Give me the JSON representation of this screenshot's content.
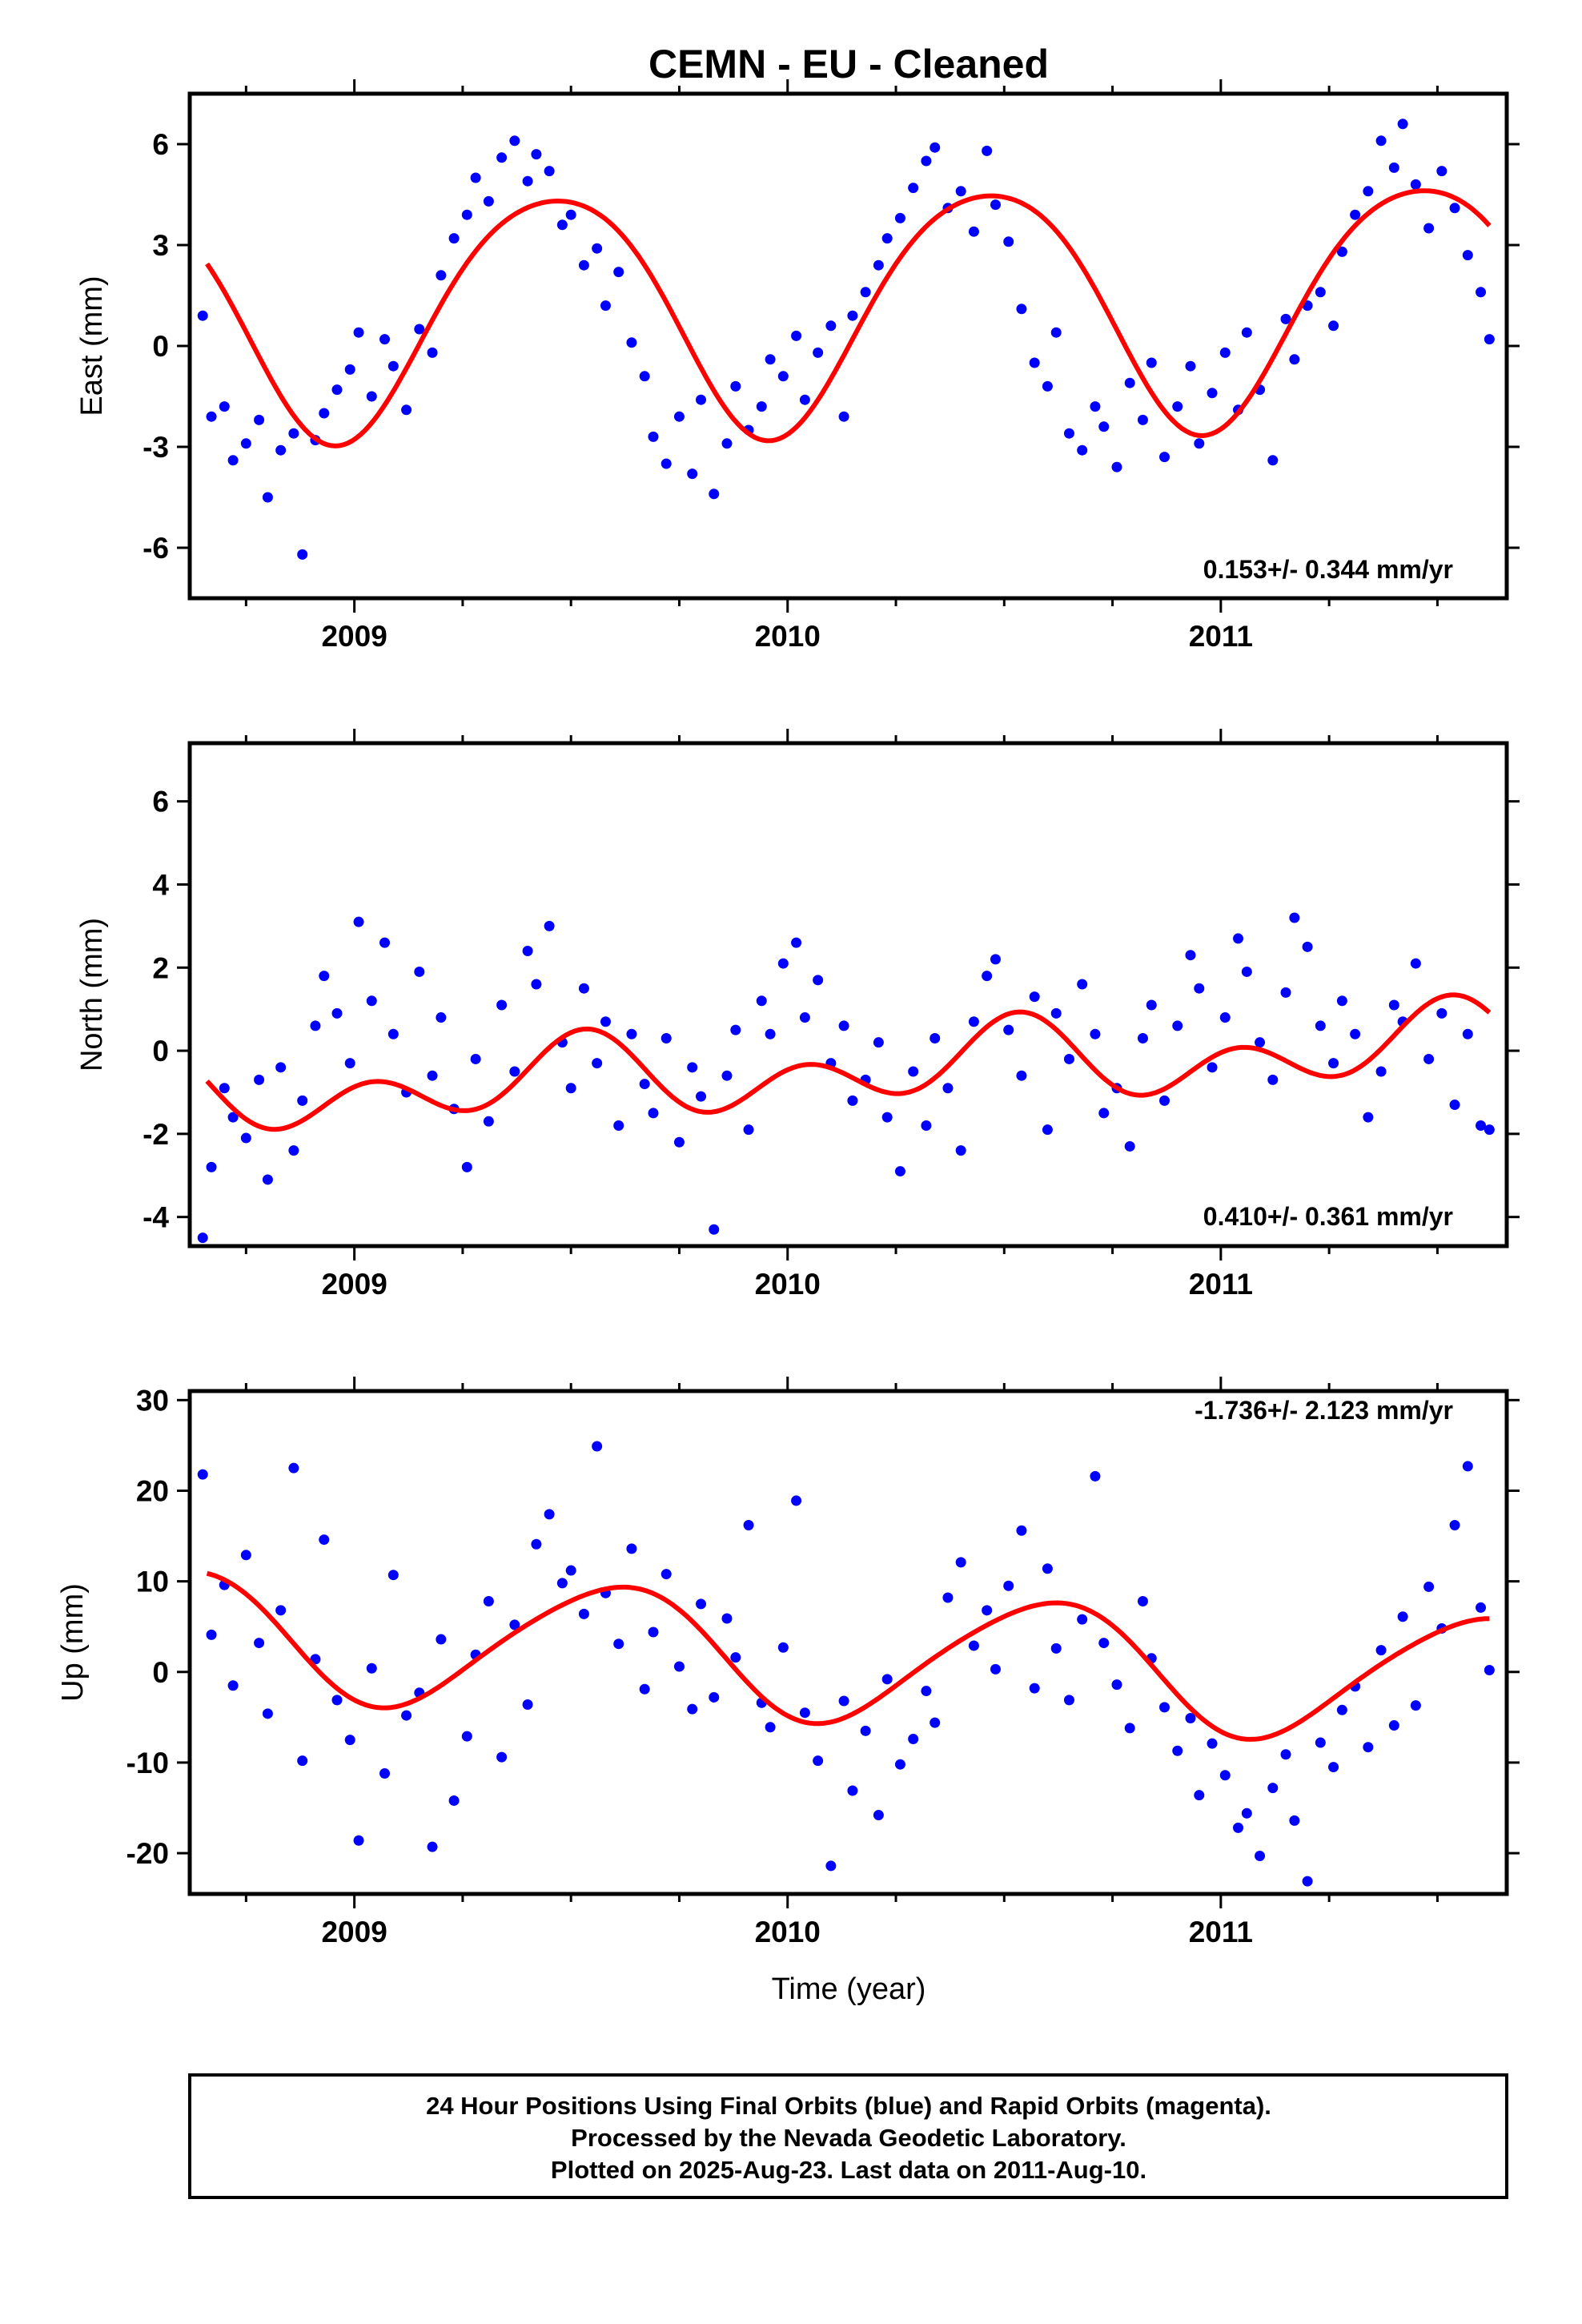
{
  "title": "CEMN  - EU - Cleaned",
  "xlabel": "Time (year)",
  "footer": [
    "24 Hour Positions Using Final Orbits (blue) and Rapid Orbits (magenta).",
    "Processed by the Nevada Geodetic Laboratory.",
    "Plotted on 2025-Aug-23. Last data on 2011-Aug-10."
  ],
  "colors": {
    "final_orbits": "#0000ff",
    "model_fit": "#ff0000",
    "frame": "#000000"
  },
  "chart_data": [
    {
      "type": "scatter",
      "ylabel": "East (mm)",
      "rate": "0.153+/- 0.344 mm/yr",
      "xlim": [
        2008.62,
        2011.66
      ],
      "ylim": [
        -7.5,
        7.5
      ],
      "xticks": [
        "2009",
        "2010",
        "2011"
      ],
      "yticks": [
        "6",
        "3",
        "0",
        "-3",
        "-6"
      ],
      "model": {
        "offset": 1.2,
        "slope": 0.153,
        "annual_amp": 3.6,
        "annual_peak": 2009.46,
        "semi_amp": 0.4,
        "semi_peak": 2009.2
      },
      "series": [
        {
          "x": [
            2008.65,
            2008.67,
            2008.7,
            2008.72,
            2008.75,
            2008.78,
            2008.8,
            2008.83,
            2008.86,
            2008.88,
            2008.91,
            2008.93,
            2008.96,
            2008.99,
            2009.01,
            2009.04,
            2009.07,
            2009.09,
            2009.12,
            2009.15,
            2009.18,
            2009.2,
            2009.23,
            2009.26,
            2009.28,
            2009.31,
            2009.34,
            2009.37,
            2009.4,
            2009.42,
            2009.45,
            2009.48,
            2009.5,
            2009.53,
            2009.56,
            2009.58,
            2009.61,
            2009.64,
            2009.67,
            2009.69,
            2009.72,
            2009.75,
            2009.78,
            2009.8,
            2009.83,
            2009.86,
            2009.88,
            2009.91,
            2009.94,
            2009.96,
            2009.99,
            2010.02,
            2010.04,
            2010.07,
            2010.1,
            2010.13,
            2010.15,
            2010.18,
            2010.21,
            2010.23,
            2010.26,
            2010.29,
            2010.32,
            2010.34,
            2010.37,
            2010.4,
            2010.43,
            2010.46,
            2010.48,
            2010.51,
            2010.54,
            2010.57,
            2010.6,
            2010.62,
            2010.65,
            2010.68,
            2010.71,
            2010.73,
            2010.76,
            2010.79,
            2010.82,
            2010.84,
            2010.87,
            2010.9,
            2010.93,
            2010.95,
            2010.98,
            2011.01,
            2011.04,
            2011.06,
            2011.09,
            2011.12,
            2011.15,
            2011.17,
            2011.2,
            2011.23,
            2011.26,
            2011.28,
            2011.31,
            2011.34,
            2011.37,
            2011.4,
            2011.42,
            2011.45,
            2011.48,
            2011.51,
            2011.54,
            2011.57,
            2011.6,
            2011.62
          ],
          "y": [
            0.9,
            -2.1,
            -1.8,
            -3.4,
            -2.9,
            -2.2,
            -4.5,
            -3.1,
            -2.6,
            -6.2,
            -2.8,
            -2.0,
            -1.3,
            -0.7,
            0.4,
            -1.5,
            0.2,
            -0.6,
            -1.9,
            0.5,
            -0.2,
            2.1,
            3.2,
            3.9,
            5.0,
            4.3,
            5.6,
            6.1,
            4.9,
            5.7,
            5.2,
            3.6,
            3.9,
            2.4,
            2.9,
            1.2,
            2.2,
            0.1,
            -0.9,
            -2.7,
            -3.5,
            -2.1,
            -3.8,
            -1.6,
            -4.4,
            -2.9,
            -1.2,
            -2.5,
            -1.8,
            -0.4,
            -0.9,
            0.3,
            -1.6,
            -0.2,
            0.6,
            -2.1,
            0.9,
            1.6,
            2.4,
            3.2,
            3.8,
            4.7,
            5.5,
            5.9,
            4.1,
            4.6,
            3.4,
            5.8,
            4.2,
            3.1,
            1.1,
            -0.5,
            -1.2,
            0.4,
            -2.6,
            -3.1,
            -1.8,
            -2.4,
            -3.6,
            -1.1,
            -2.2,
            -0.5,
            -3.3,
            -1.8,
            -0.6,
            -2.9,
            -1.4,
            -0.2,
            -1.9,
            0.4,
            -1.3,
            -3.4,
            0.8,
            -0.4,
            1.2,
            1.6,
            0.6,
            2.8,
            3.9,
            4.6,
            6.1,
            5.3,
            6.6,
            4.8,
            3.5,
            5.2,
            4.1,
            2.7,
            1.6,
            0.2
          ]
        }
      ]
    },
    {
      "type": "scatter",
      "ylabel": "North (mm)",
      "rate": "0.410+/- 0.361 mm/yr",
      "xlim": [
        2008.62,
        2011.66
      ],
      "ylim": [
        -4.7,
        7.4
      ],
      "xticks": [
        "2009",
        "2010",
        "2011"
      ],
      "yticks": [
        "6",
        "4",
        "2",
        "0",
        "-2",
        "-4"
      ],
      "model": {
        "offset": -0.48,
        "slope": 0.41,
        "annual_amp": 0.55,
        "annual_peak": 2009.5,
        "semi_amp": 0.7,
        "semi_peak": 2009.04
      },
      "series": [
        {
          "x": [
            2008.65,
            2008.67,
            2008.7,
            2008.72,
            2008.75,
            2008.78,
            2008.8,
            2008.83,
            2008.86,
            2008.88,
            2008.91,
            2008.93,
            2008.96,
            2008.99,
            2009.01,
            2009.04,
            2009.07,
            2009.09,
            2009.12,
            2009.15,
            2009.18,
            2009.2,
            2009.23,
            2009.26,
            2009.28,
            2009.31,
            2009.34,
            2009.37,
            2009.4,
            2009.42,
            2009.45,
            2009.48,
            2009.5,
            2009.53,
            2009.56,
            2009.58,
            2009.61,
            2009.64,
            2009.67,
            2009.69,
            2009.72,
            2009.75,
            2009.78,
            2009.8,
            2009.83,
            2009.86,
            2009.88,
            2009.91,
            2009.94,
            2009.96,
            2009.99,
            2010.02,
            2010.04,
            2010.07,
            2010.1,
            2010.13,
            2010.15,
            2010.18,
            2010.21,
            2010.23,
            2010.26,
            2010.29,
            2010.32,
            2010.34,
            2010.37,
            2010.4,
            2010.43,
            2010.46,
            2010.48,
            2010.51,
            2010.54,
            2010.57,
            2010.6,
            2010.62,
            2010.65,
            2010.68,
            2010.71,
            2010.73,
            2010.76,
            2010.79,
            2010.82,
            2010.84,
            2010.87,
            2010.9,
            2010.93,
            2010.95,
            2010.98,
            2011.01,
            2011.04,
            2011.06,
            2011.09,
            2011.12,
            2011.15,
            2011.17,
            2011.2,
            2011.23,
            2011.26,
            2011.28,
            2011.31,
            2011.34,
            2011.37,
            2011.4,
            2011.42,
            2011.45,
            2011.48,
            2011.51,
            2011.54,
            2011.57,
            2011.6,
            2011.62
          ],
          "y": [
            -4.5,
            -2.8,
            -0.9,
            -1.6,
            -2.1,
            -0.7,
            -3.1,
            -0.4,
            -2.4,
            -1.2,
            0.6,
            1.8,
            0.9,
            -0.3,
            3.1,
            1.2,
            2.6,
            0.4,
            -1.0,
            1.9,
            -0.6,
            0.8,
            -1.4,
            -2.8,
            -0.2,
            -1.7,
            1.1,
            -0.5,
            2.4,
            1.6,
            3.0,
            0.2,
            -0.9,
            1.5,
            -0.3,
            0.7,
            -1.8,
            0.4,
            -0.8,
            -1.5,
            0.3,
            -2.2,
            -0.4,
            -1.1,
            -4.3,
            -0.6,
            0.5,
            -1.9,
            1.2,
            0.4,
            2.1,
            2.6,
            0.8,
            1.7,
            -0.3,
            0.6,
            -1.2,
            -0.7,
            0.2,
            -1.6,
            -2.9,
            -0.5,
            -1.8,
            0.3,
            -0.9,
            -2.4,
            0.7,
            1.8,
            2.2,
            0.5,
            -0.6,
            1.3,
            -1.9,
            0.9,
            -0.2,
            1.6,
            0.4,
            -1.5,
            -0.9,
            -2.3,
            0.3,
            1.1,
            -1.2,
            0.6,
            2.3,
            1.5,
            -0.4,
            0.8,
            2.7,
            1.9,
            0.2,
            -0.7,
            1.4,
            3.2,
            2.5,
            0.6,
            -0.3,
            1.2,
            0.4,
            -1.6,
            -0.5,
            1.1,
            0.7,
            2.1,
            -0.2,
            0.9,
            -1.3,
            0.4,
            -1.8,
            -1.9
          ]
        }
      ]
    },
    {
      "type": "scatter",
      "ylabel": "Up (mm)",
      "rate": "-1.736+/- 2.123 mm/yr",
      "xlim": [
        2008.62,
        2011.66
      ],
      "ylim": [
        -24.5,
        31
      ],
      "xticks": [
        "2009",
        "2010",
        "2011"
      ],
      "yticks": [
        "30",
        "20",
        "10",
        "0",
        "-10",
        "-20"
      ],
      "model": {
        "offset": 1.7,
        "slope": -1.736,
        "annual_amp": 7.0,
        "annual_peak": 2009.59,
        "semi_amp": 0.8,
        "semi_peak": 2009.25
      },
      "series": [
        {
          "x": [
            2008.65,
            2008.67,
            2008.7,
            2008.72,
            2008.75,
            2008.78,
            2008.8,
            2008.83,
            2008.86,
            2008.88,
            2008.91,
            2008.93,
            2008.96,
            2008.99,
            2009.01,
            2009.04,
            2009.07,
            2009.09,
            2009.12,
            2009.15,
            2009.18,
            2009.2,
            2009.23,
            2009.26,
            2009.28,
            2009.31,
            2009.34,
            2009.37,
            2009.4,
            2009.42,
            2009.45,
            2009.48,
            2009.5,
            2009.53,
            2009.56,
            2009.58,
            2009.61,
            2009.64,
            2009.67,
            2009.69,
            2009.72,
            2009.75,
            2009.78,
            2009.8,
            2009.83,
            2009.86,
            2009.88,
            2009.91,
            2009.94,
            2009.96,
            2009.99,
            2010.02,
            2010.04,
            2010.07,
            2010.1,
            2010.13,
            2010.15,
            2010.18,
            2010.21,
            2010.23,
            2010.26,
            2010.29,
            2010.32,
            2010.34,
            2010.37,
            2010.4,
            2010.43,
            2010.46,
            2010.48,
            2010.51,
            2010.54,
            2010.57,
            2010.6,
            2010.62,
            2010.65,
            2010.68,
            2010.71,
            2010.73,
            2010.76,
            2010.79,
            2010.82,
            2010.84,
            2010.87,
            2010.9,
            2010.93,
            2010.95,
            2010.98,
            2011.01,
            2011.04,
            2011.06,
            2011.09,
            2011.12,
            2011.15,
            2011.17,
            2011.2,
            2011.23,
            2011.26,
            2011.28,
            2011.31,
            2011.34,
            2011.37,
            2011.4,
            2011.42,
            2011.45,
            2011.48,
            2011.51,
            2011.54,
            2011.57,
            2011.6,
            2011.62
          ],
          "y": [
            21.8,
            4.1,
            9.6,
            -1.5,
            12.9,
            3.2,
            -4.6,
            6.8,
            22.5,
            -9.8,
            1.4,
            14.6,
            -3.1,
            -7.5,
            -18.6,
            0.4,
            -11.2,
            10.7,
            -4.8,
            -2.3,
            -19.3,
            3.6,
            -14.2,
            -7.1,
            1.9,
            7.8,
            -9.4,
            5.2,
            -3.6,
            14.1,
            17.4,
            9.8,
            11.2,
            6.4,
            24.9,
            8.7,
            3.1,
            13.6,
            -1.9,
            4.4,
            10.8,
            0.6,
            -4.1,
            7.5,
            -2.8,
            5.9,
            1.6,
            16.2,
            -3.4,
            -6.1,
            2.7,
            18.9,
            -4.5,
            -9.8,
            -21.4,
            -3.2,
            -13.1,
            -6.5,
            -15.8,
            -0.8,
            -10.2,
            -7.4,
            -2.1,
            -5.6,
            8.2,
            12.1,
            2.9,
            6.8,
            0.3,
            9.5,
            15.6,
            -1.8,
            11.4,
            2.6,
            -3.1,
            5.8,
            21.6,
            3.2,
            -1.4,
            -6.2,
            7.8,
            1.5,
            -3.9,
            -8.7,
            -5.1,
            -13.6,
            -7.9,
            -11.4,
            -17.2,
            -15.6,
            -20.3,
            -12.8,
            -9.1,
            -16.4,
            -23.1,
            -7.8,
            -10.5,
            -4.2,
            -1.6,
            -8.3,
            2.4,
            -5.9,
            6.1,
            -3.7,
            9.4,
            4.8,
            16.2,
            22.7,
            7.1,
            0.2
          ]
        }
      ]
    }
  ]
}
